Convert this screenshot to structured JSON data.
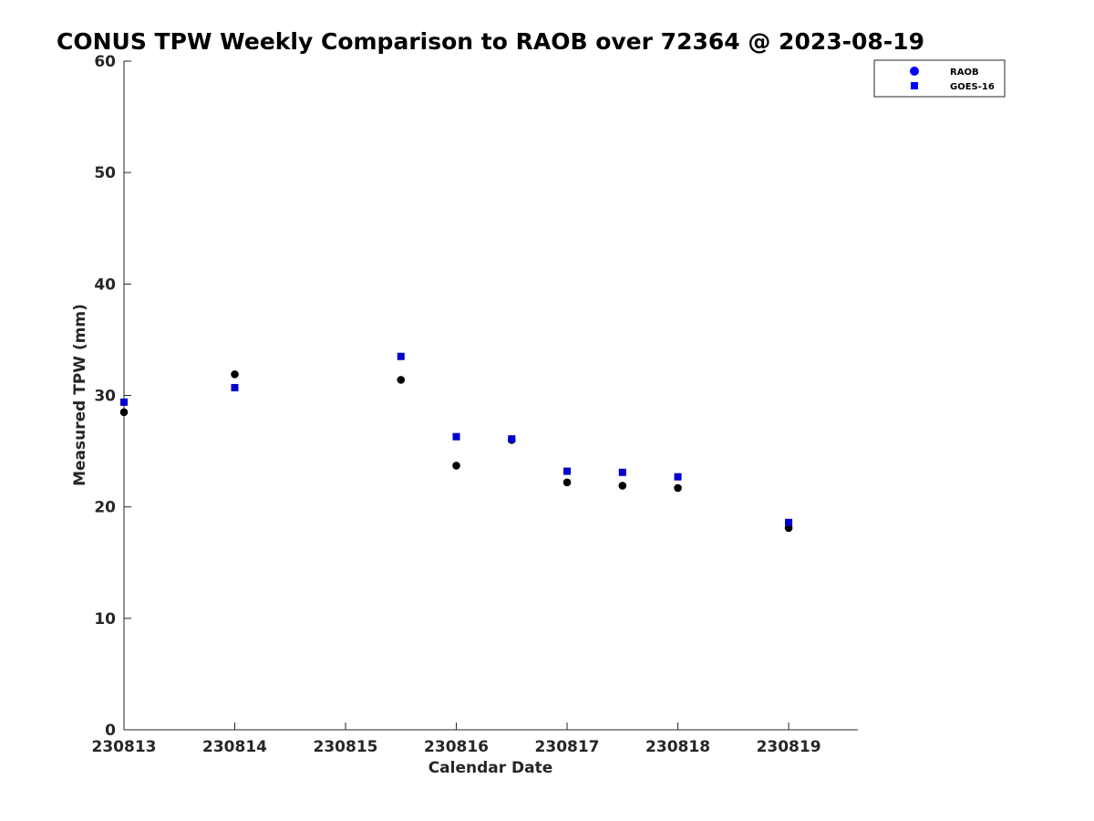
{
  "chart_data": {
    "type": "scatter",
    "title": "CONUS TPW Weekly Comparison to RAOB over 72364 @ 2023-08-19",
    "xlabel": "Calendar Date",
    "ylabel": "Measured TPW (mm)",
    "xlim": [
      "2023-08-13",
      "2023-08-19T15:00"
    ],
    "ylim": [
      0,
      60
    ],
    "x_ticks": [
      "2023-08-13",
      "2023-08-14",
      "2023-08-15",
      "2023-08-16",
      "2023-08-17",
      "2023-08-18",
      "2023-08-19"
    ],
    "x_tick_labels": [
      "230813",
      "230814",
      "230815",
      "230816",
      "230817",
      "230818",
      "230819"
    ],
    "y_ticks": [
      0,
      10,
      20,
      30,
      40,
      50,
      60
    ],
    "y_tick_labels": [
      "0",
      "10",
      "20",
      "30",
      "40",
      "50",
      "60"
    ],
    "grid": false,
    "legend_position": "top-right",
    "series": [
      {
        "name": "RAOB",
        "marker": "circle",
        "color": "#000000",
        "legend_color": "#0000ff",
        "x": [
          "2023-08-13T00:00",
          "2023-08-14T00:00",
          "2023-08-15T12:00",
          "2023-08-16T00:00",
          "2023-08-16T12:00",
          "2023-08-17T00:00",
          "2023-08-17T12:00",
          "2023-08-18T00:00",
          "2023-08-19T00:00"
        ],
        "y": [
          28.5,
          31.9,
          31.4,
          23.7,
          26.0,
          22.2,
          21.9,
          21.7,
          18.1
        ]
      },
      {
        "name": "GOES-16",
        "marker": "square",
        "color": "#0000cc",
        "legend_color": "#0000ff",
        "x": [
          "2023-08-13T00:00",
          "2023-08-14T00:00",
          "2023-08-15T12:00",
          "2023-08-16T00:00",
          "2023-08-16T12:00",
          "2023-08-17T00:00",
          "2023-08-17T12:00",
          "2023-08-18T00:00",
          "2023-08-19T00:00"
        ],
        "y": [
          29.4,
          30.7,
          33.5,
          26.3,
          26.1,
          23.2,
          23.1,
          22.7,
          18.6
        ]
      }
    ]
  }
}
